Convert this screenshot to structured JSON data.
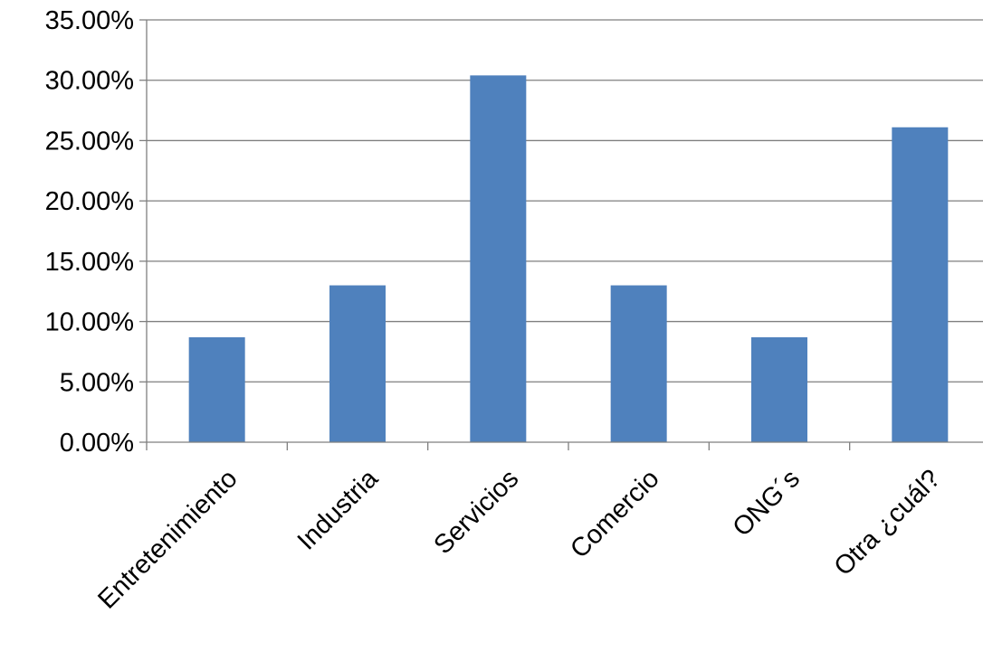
{
  "chart_data": {
    "type": "bar",
    "categories": [
      "Entretenimiento",
      "Industria",
      "Servicios",
      "Comercio",
      "ONG´s",
      "Otra ¿cuál?"
    ],
    "values": [
      0.087,
      0.13,
      0.304,
      0.13,
      0.087,
      0.261
    ],
    "y_tick_labels": [
      "0.00%",
      "5.00%",
      "10.00%",
      "15.00%",
      "20.00%",
      "25.00%",
      "30.00%",
      "35.00%"
    ],
    "ylim": [
      0,
      0.35
    ],
    "y_tick_step": 0.05,
    "bar_color": "#4f81bd",
    "grid": true,
    "legend": "none",
    "title": "",
    "xlabel": "",
    "ylabel": ""
  }
}
